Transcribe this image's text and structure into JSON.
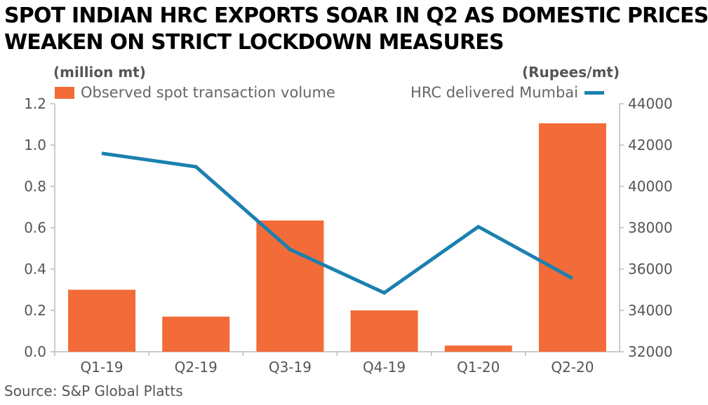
{
  "title_lines": [
    "SPOT INDIAN HRC EXPORTS SOAR IN Q2 AS DOMESTIC PRICES",
    "WEAKEN ON STRICT LOCKDOWN MEASURES"
  ],
  "source": "Source: S&P Global Platts",
  "colors": {
    "bar": "#F26B38",
    "line": "#1B80AF",
    "axis": "#bbbbbb",
    "text": "#555555"
  },
  "chart_data": {
    "type": "bar+line",
    "categories": [
      "Q1-19",
      "Q2-19",
      "Q3-19",
      "Q4-19",
      "Q1-20",
      "Q2-20"
    ],
    "series": [
      {
        "name": "Observed spot transaction volume",
        "type": "bar",
        "axis": "left",
        "values": [
          0.3,
          0.17,
          0.635,
          0.2,
          0.03,
          1.105
        ]
      },
      {
        "name": "HRC delivered Mumbai",
        "type": "line",
        "axis": "right",
        "values": [
          41600,
          40950,
          36950,
          34850,
          38050,
          35550
        ]
      }
    ],
    "y_left": {
      "label": "(million mt)",
      "min": 0,
      "max": 1.2,
      "ticks": [
        "0.0",
        "0.2",
        "0.4",
        "0.6",
        "0.8",
        "1.0",
        "1.2"
      ]
    },
    "y_right": {
      "label": "(Rupees/mt)",
      "min": 32000,
      "max": 44000,
      "ticks": [
        "32000",
        "34000",
        "36000",
        "38000",
        "40000",
        "42000",
        "44000"
      ]
    },
    "grid": false,
    "legend": [
      "top-left",
      "top-right"
    ]
  }
}
